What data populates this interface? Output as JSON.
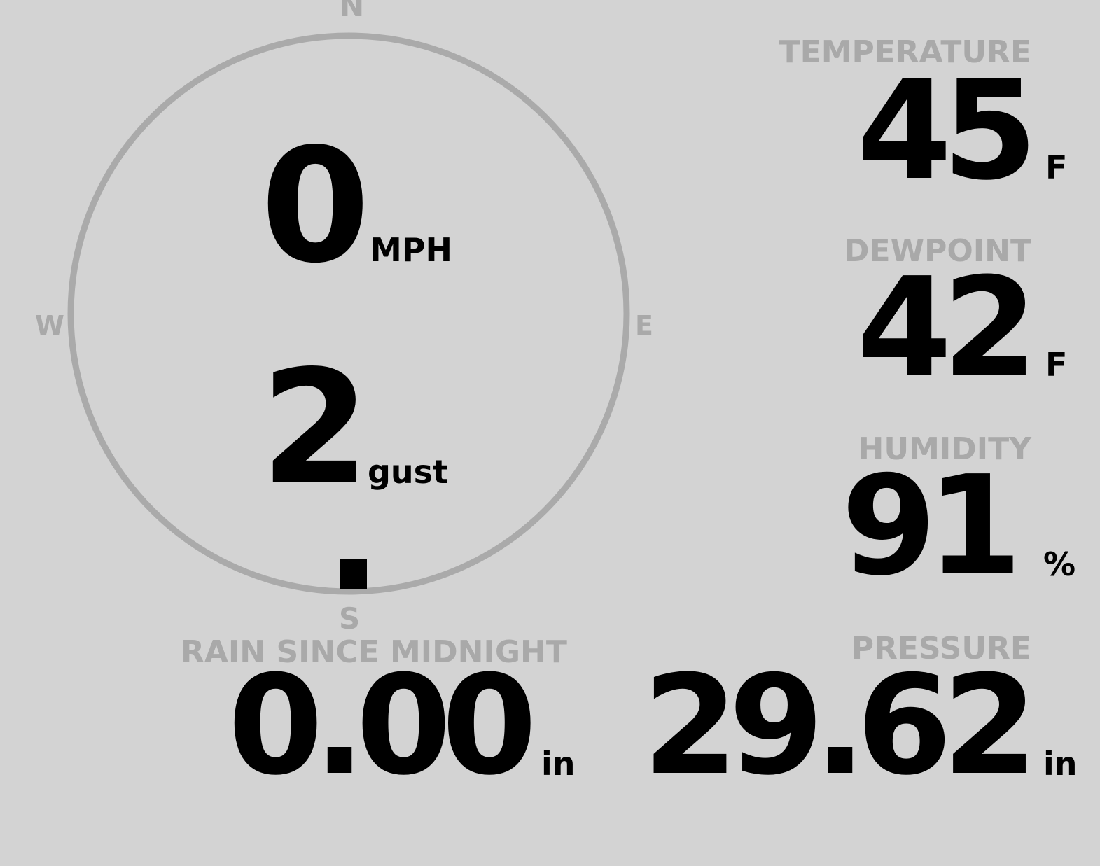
{
  "compass": {
    "north": "N",
    "south": "S",
    "east": "E",
    "west": "W",
    "wind_direction_deg": 180,
    "ring_color": "#aaaaaa",
    "marker_color": "#000000"
  },
  "wind": {
    "speed": "0",
    "speed_unit": "MPH",
    "gust": "2",
    "gust_unit": "gust"
  },
  "temperature": {
    "label": "TEMPERATURE",
    "value": "45",
    "unit": "F"
  },
  "dewpoint": {
    "label": "DEWPOINT",
    "value": "42",
    "unit": "F"
  },
  "humidity": {
    "label": "HUMIDITY",
    "value": "91",
    "unit": "%"
  },
  "pressure": {
    "label": "PRESSURE",
    "value": "29.62",
    "unit": "in"
  },
  "rain": {
    "label": "RAIN SINCE MIDNIGHT",
    "value": "0.00",
    "unit": "in"
  }
}
